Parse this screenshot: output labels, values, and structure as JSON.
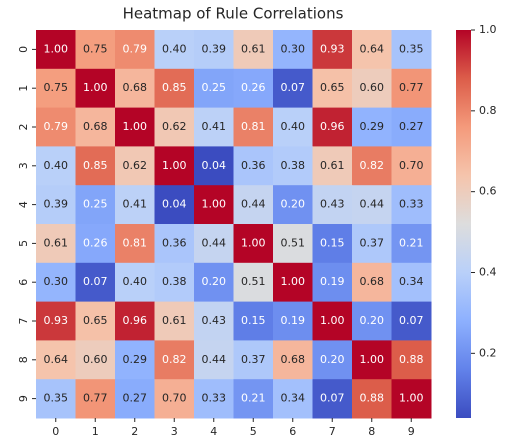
{
  "chart_data": {
    "type": "heatmap",
    "title": "Heatmap of Rule Correlations",
    "x_categories": [
      "0",
      "1",
      "2",
      "3",
      "4",
      "5",
      "6",
      "7",
      "8",
      "9"
    ],
    "y_categories": [
      "0",
      "1",
      "2",
      "3",
      "4",
      "5",
      "6",
      "7",
      "8",
      "9"
    ],
    "values": [
      [
        1.0,
        0.75,
        0.79,
        0.4,
        0.39,
        0.61,
        0.3,
        0.93,
        0.64,
        0.35
      ],
      [
        0.75,
        1.0,
        0.68,
        0.85,
        0.25,
        0.26,
        0.07,
        0.65,
        0.6,
        0.77
      ],
      [
        0.79,
        0.68,
        1.0,
        0.62,
        0.41,
        0.81,
        0.4,
        0.96,
        0.29,
        0.27
      ],
      [
        0.4,
        0.85,
        0.62,
        1.0,
        0.04,
        0.36,
        0.38,
        0.61,
        0.82,
        0.7
      ],
      [
        0.39,
        0.25,
        0.41,
        0.04,
        1.0,
        0.44,
        0.2,
        0.43,
        0.44,
        0.33
      ],
      [
        0.61,
        0.26,
        0.81,
        0.36,
        0.44,
        1.0,
        0.51,
        0.15,
        0.37,
        0.21
      ],
      [
        0.3,
        0.07,
        0.4,
        0.38,
        0.2,
        0.51,
        1.0,
        0.19,
        0.68,
        0.34
      ],
      [
        0.93,
        0.65,
        0.96,
        0.61,
        0.43,
        0.15,
        0.19,
        1.0,
        0.2,
        0.07
      ],
      [
        0.64,
        0.6,
        0.29,
        0.82,
        0.44,
        0.37,
        0.68,
        0.2,
        1.0,
        0.88
      ],
      [
        0.35,
        0.77,
        0.27,
        0.7,
        0.33,
        0.21,
        0.34,
        0.07,
        0.88,
        1.0
      ]
    ],
    "value_labels": [
      [
        "1.00",
        "0.75",
        "0.79",
        "0.40",
        "0.39",
        "0.61",
        "0.30",
        "0.93",
        "0.64",
        "0.35"
      ],
      [
        "0.75",
        "1.00",
        "0.68",
        "0.85",
        "0.25",
        "0.26",
        "0.07",
        "0.65",
        "0.60",
        "0.77"
      ],
      [
        "0.79",
        "0.68",
        "1.00",
        "0.62",
        "0.41",
        "0.81",
        "0.40",
        "0.96",
        "0.29",
        "0.27"
      ],
      [
        "0.40",
        "0.85",
        "0.62",
        "1.00",
        "0.04",
        "0.36",
        "0.38",
        "0.61",
        "0.82",
        "0.70"
      ],
      [
        "0.39",
        "0.25",
        "0.41",
        "0.04",
        "1.00",
        "0.44",
        "0.20",
        "0.43",
        "0.44",
        "0.33"
      ],
      [
        "0.61",
        "0.26",
        "0.81",
        "0.36",
        "0.44",
        "1.00",
        "0.51",
        "0.15",
        "0.37",
        "0.21"
      ],
      [
        "0.30",
        "0.07",
        "0.40",
        "0.38",
        "0.20",
        "0.51",
        "1.00",
        "0.19",
        "0.68",
        "0.34"
      ],
      [
        "0.93",
        "0.65",
        "0.96",
        "0.61",
        "0.43",
        "0.15",
        "0.19",
        "1.00",
        "0.20",
        "0.07"
      ],
      [
        "0.64",
        "0.60",
        "0.29",
        "0.82",
        "0.44",
        "0.37",
        "0.68",
        "0.20",
        "1.00",
        "0.88"
      ],
      [
        "0.35",
        "0.77",
        "0.27",
        "0.70",
        "0.33",
        "0.21",
        "0.34",
        "0.07",
        "0.88",
        "1.00"
      ]
    ],
    "colormap": "coolwarm",
    "colorbar_lim": [
      0.04,
      1.0
    ],
    "colorbar_ticks": [
      0.2,
      0.4,
      0.6,
      0.8,
      {
        "value": 1.0,
        "label": "1.0"
      }
    ]
  }
}
